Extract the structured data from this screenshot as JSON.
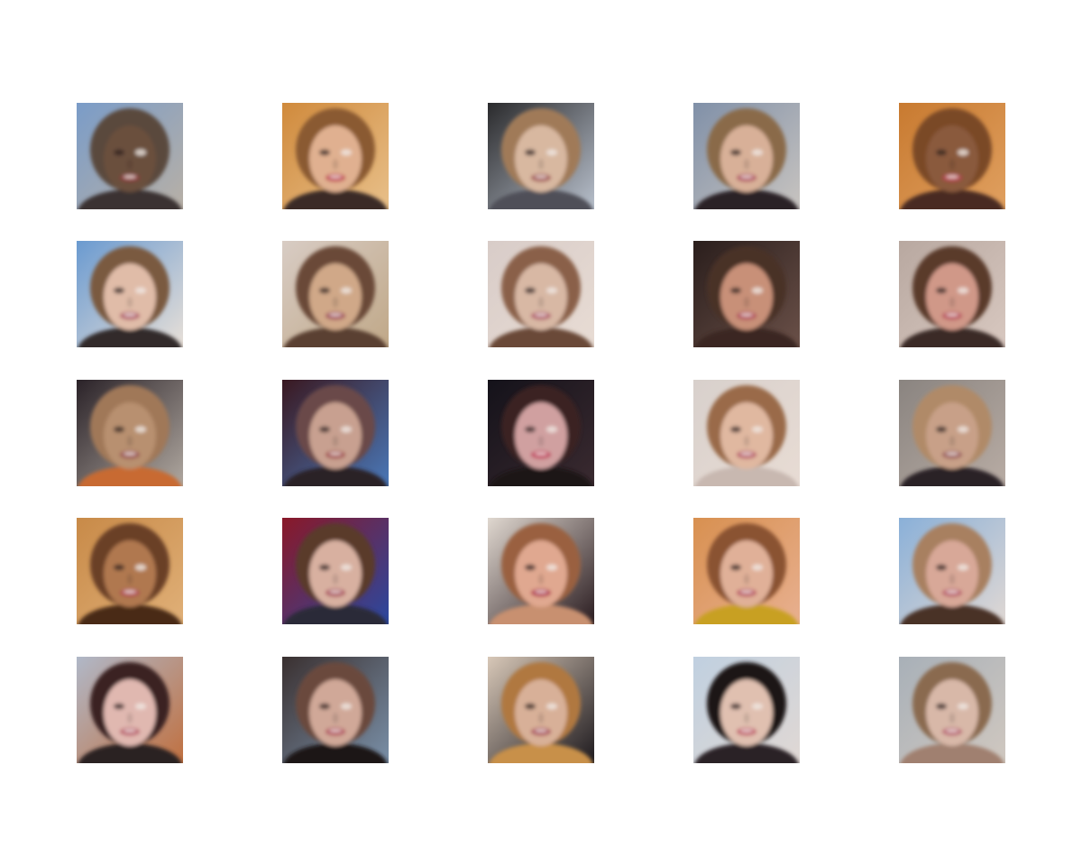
{
  "figure": {
    "description_type": "grid-of-generated-face-samples",
    "rows": 5,
    "columns": 5,
    "tiles": [
      {
        "bg": "#7a9cc8",
        "bg2": "#b8b0a6",
        "hair": "#5a4a3c",
        "skin": "#6b4f3e",
        "mouth": "#8a3a3a",
        "shirt": "#3a3230"
      },
      {
        "bg": "#d08a3c",
        "bg2": "#e8c08a",
        "hair": "#8a5a30",
        "skin": "#e0b090",
        "mouth": "#c04050",
        "shirt": "#3a2a28"
      },
      {
        "bg": "#2a2a2c",
        "bg2": "#b8c0cc",
        "hair": "#a07a58",
        "skin": "#d8b8a0",
        "mouth": "#a05050",
        "shirt": "#505058"
      },
      {
        "bg": "#8090a8",
        "bg2": "#c8c4c0",
        "hair": "#8a6a4a",
        "skin": "#d8b098",
        "mouth": "#b05060",
        "shirt": "#2a2226"
      },
      {
        "bg": "#c87a30",
        "bg2": "#e0a060",
        "hair": "#7a4a28",
        "skin": "#8a5a3c",
        "mouth": "#b04048",
        "shirt": "#4a2a20"
      },
      {
        "bg": "#6a9ad0",
        "bg2": "#e8e0d8",
        "hair": "#7a5a40",
        "skin": "#e0bca8",
        "mouth": "#b05868",
        "shirt": "#302a2c"
      },
      {
        "bg": "#d8ccc4",
        "bg2": "#c0a888",
        "hair": "#6a4a38",
        "skin": "#d0a888",
        "mouth": "#a04858",
        "shirt": "#5a4030"
      },
      {
        "bg": "#d8ccc8",
        "bg2": "#e8dcd4",
        "hair": "#8a6048",
        "skin": "#d8b8a4",
        "mouth": "#b05868",
        "shirt": "#6a4a38"
      },
      {
        "bg": "#2a1e1c",
        "bg2": "#6a5048",
        "hair": "#4a3028",
        "skin": "#c89078",
        "mouth": "#b04858",
        "shirt": "#3a2820"
      },
      {
        "bg": "#b8a8a0",
        "bg2": "#d8c8c0",
        "hair": "#5a3a2c",
        "skin": "#d09888",
        "mouth": "#b84858",
        "shirt": "#3a2a28"
      },
      {
        "bg": "#2a2228",
        "bg2": "#b0a8a0",
        "hair": "#a07858",
        "skin": "#b89070",
        "mouth": "#9a5050",
        "shirt": "#c86a30"
      },
      {
        "bg": "#3a1820",
        "bg2": "#4a78b8",
        "hair": "#6a4a48",
        "skin": "#c8a090",
        "mouth": "#a04848",
        "shirt": "#2a2028"
      },
      {
        "bg": "#14121a",
        "bg2": "#3a2a30",
        "hair": "#3a2424",
        "skin": "#d0a0a0",
        "mouth": "#c03858",
        "shirt": "#1a1418"
      },
      {
        "bg": "#d8d0cc",
        "bg2": "#e8dcd4",
        "hair": "#9a6a48",
        "skin": "#e0b8a0",
        "mouth": "#b85868",
        "shirt": "#c8b8b0"
      },
      {
        "bg": "#8a8480",
        "bg2": "#b8aca4",
        "hair": "#b08a68",
        "skin": "#c8a088",
        "mouth": "#9a5858",
        "shirt": "#2a2228"
      },
      {
        "bg": "#c88a48",
        "bg2": "#e0b078",
        "hair": "#6a4028",
        "skin": "#b07850",
        "mouth": "#b04850",
        "shirt": "#4a2a18"
      },
      {
        "bg": "#8a1828",
        "bg2": "#2a48a0",
        "hair": "#5a3a2c",
        "skin": "#d8b0a0",
        "mouth": "#a84858",
        "shirt": "#2a2a38"
      },
      {
        "bg": "#e0d8d0",
        "bg2": "#2a1c20",
        "hair": "#9a6040",
        "skin": "#e0a890",
        "mouth": "#b02848",
        "shirt": "#c89070"
      },
      {
        "bg": "#d89050",
        "bg2": "#e8b090",
        "hair": "#8a5230",
        "skin": "#e0b098",
        "mouth": "#b85060",
        "shirt": "#c8a020"
      },
      {
        "bg": "#8ab0d8",
        "bg2": "#e0d8d4",
        "hair": "#a88060",
        "skin": "#d8a898",
        "mouth": "#b85868",
        "shirt": "#4a3028"
      },
      {
        "bg": "#b0b8c8",
        "bg2": "#c07040",
        "hair": "#3a2424",
        "skin": "#e0b8b0",
        "mouth": "#b85868",
        "shirt": "#2a2024"
      },
      {
        "bg": "#3a3030",
        "bg2": "#7a90a8",
        "hair": "#6a4a3c",
        "skin": "#d0a898",
        "mouth": "#b04858",
        "shirt": "#1a1418"
      },
      {
        "bg": "#d8c8b8",
        "bg2": "#1e1a1e",
        "hair": "#b07840",
        "skin": "#d8b098",
        "mouth": "#a84858",
        "shirt": "#c89048"
      },
      {
        "bg": "#c0d0e0",
        "bg2": "#e0d8d4",
        "hair": "#1e1618",
        "skin": "#e0c0b0",
        "mouth": "#c05868",
        "shirt": "#2a2226"
      },
      {
        "bg": "#a8b0b8",
        "bg2": "#d0c8c0",
        "hair": "#8a6a50",
        "skin": "#d8b8a8",
        "mouth": "#b86070",
        "shirt": "#a08070"
      }
    ]
  }
}
